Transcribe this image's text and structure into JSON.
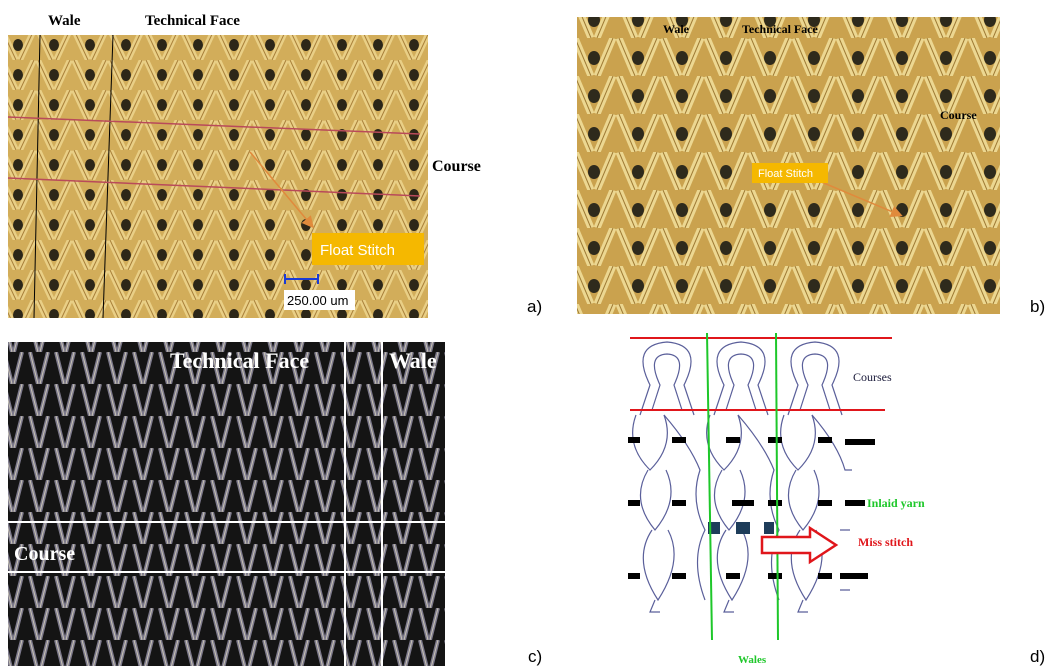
{
  "panels": [
    {
      "label": "a)",
      "annotations": {
        "wale": "Wale",
        "technical_face": "Technical Face",
        "course": "Course",
        "float_stitch": "Float Stitch",
        "scale": "250.00 um"
      }
    },
    {
      "label": "b)",
      "annotations": {
        "wale": "Wale",
        "technical_face": "Technical Face",
        "course": "Course",
        "float_stitch": "Float Stitch"
      }
    },
    {
      "label": "c)",
      "annotations": {
        "technical_face": "Technical Face",
        "wale": "Wale",
        "course": "Course"
      }
    },
    {
      "label": "d)",
      "annotations": {
        "courses": "Courses",
        "inlaid_yarn": "Inlaid yarn",
        "miss_stitch": "Miss stitch",
        "wales": "Wales"
      }
    }
  ]
}
